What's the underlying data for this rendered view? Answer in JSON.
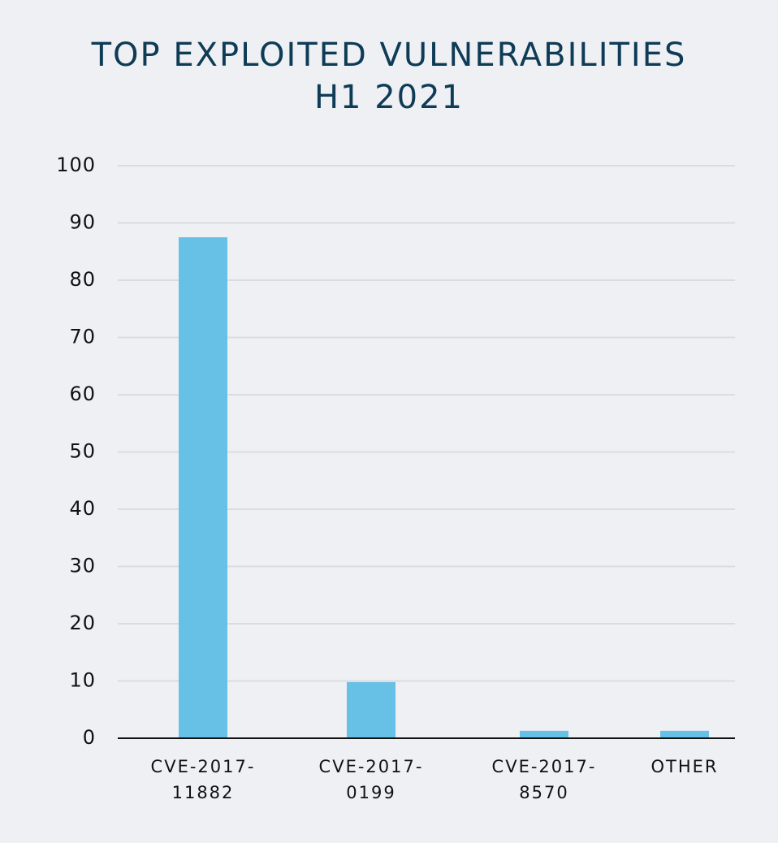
{
  "chart_data": {
    "type": "bar",
    "title": "TOP EXPLOITED VULNERABILITIES H1 2021",
    "categories": [
      "CVE-2017-11882",
      "CVE-2017-0199",
      "CVE-2017-8570",
      "OTHER"
    ],
    "values": [
      87.5,
      9.8,
      1.3,
      1.3
    ],
    "color": "#67c0e6",
    "ylim": [
      0,
      100
    ],
    "yticks": [
      0,
      10,
      20,
      30,
      40,
      50,
      60,
      70,
      80,
      90,
      100
    ],
    "grid": true
  }
}
